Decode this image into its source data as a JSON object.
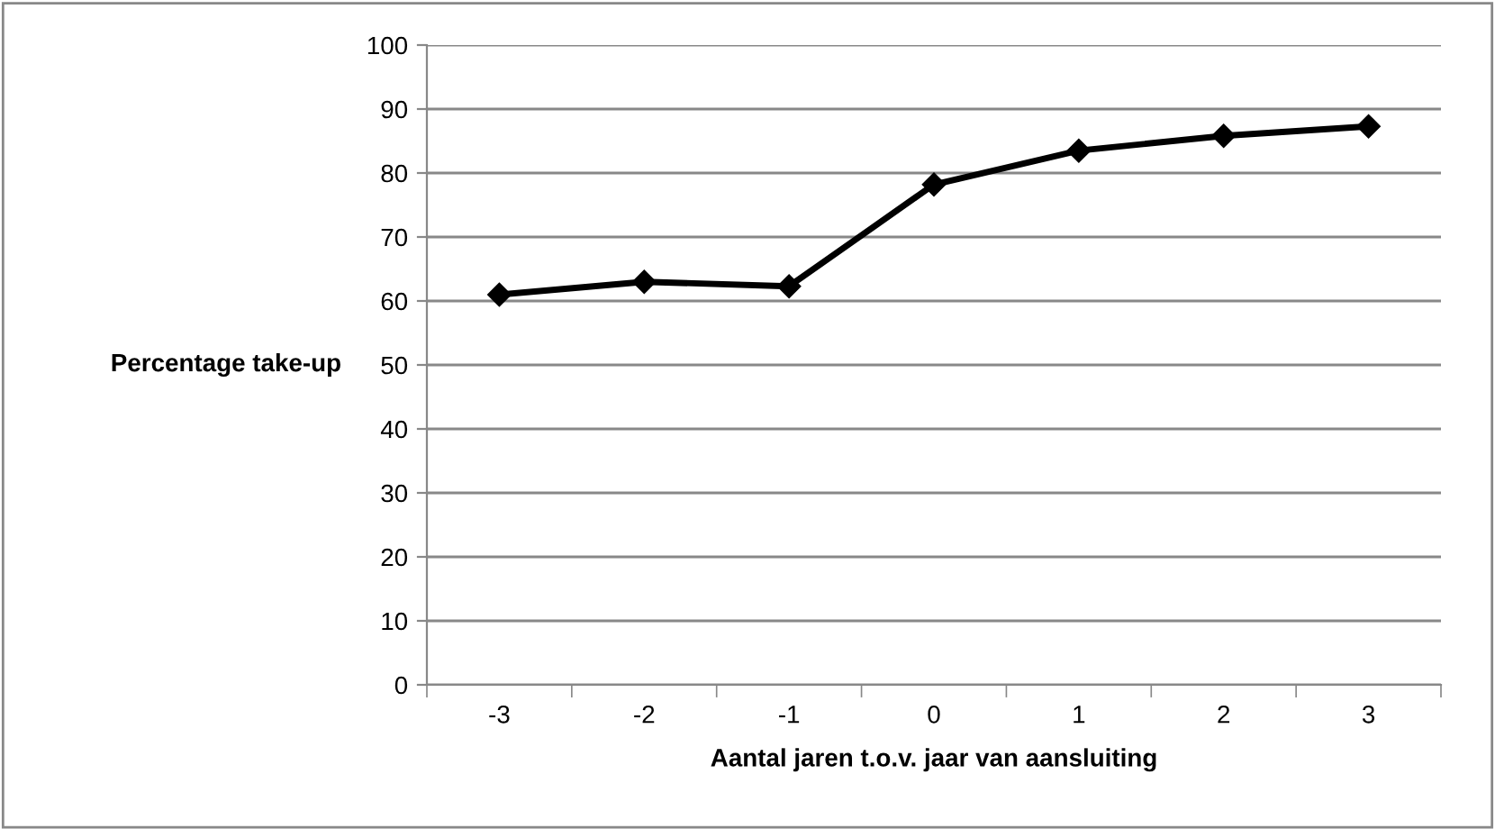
{
  "chart_data": {
    "type": "line",
    "xlabel": "Aantal jaren t.o.v. jaar van aansluiting",
    "ylabel": "Percentage take-up",
    "categories": [
      "-3",
      "-2",
      "-1",
      "0",
      "1",
      "2",
      "3"
    ],
    "series": [
      {
        "color": "#000000",
        "values": [
          61.0,
          63.0,
          62.3,
          78.2,
          83.5,
          85.8,
          87.3
        ]
      }
    ],
    "ylim": [
      0,
      100
    ],
    "yticks": [
      0,
      10,
      20,
      30,
      40,
      50,
      60,
      70,
      80,
      90,
      100
    ],
    "grid": "y",
    "marker": "diamond",
    "line_style": "solid",
    "legend": false
  }
}
